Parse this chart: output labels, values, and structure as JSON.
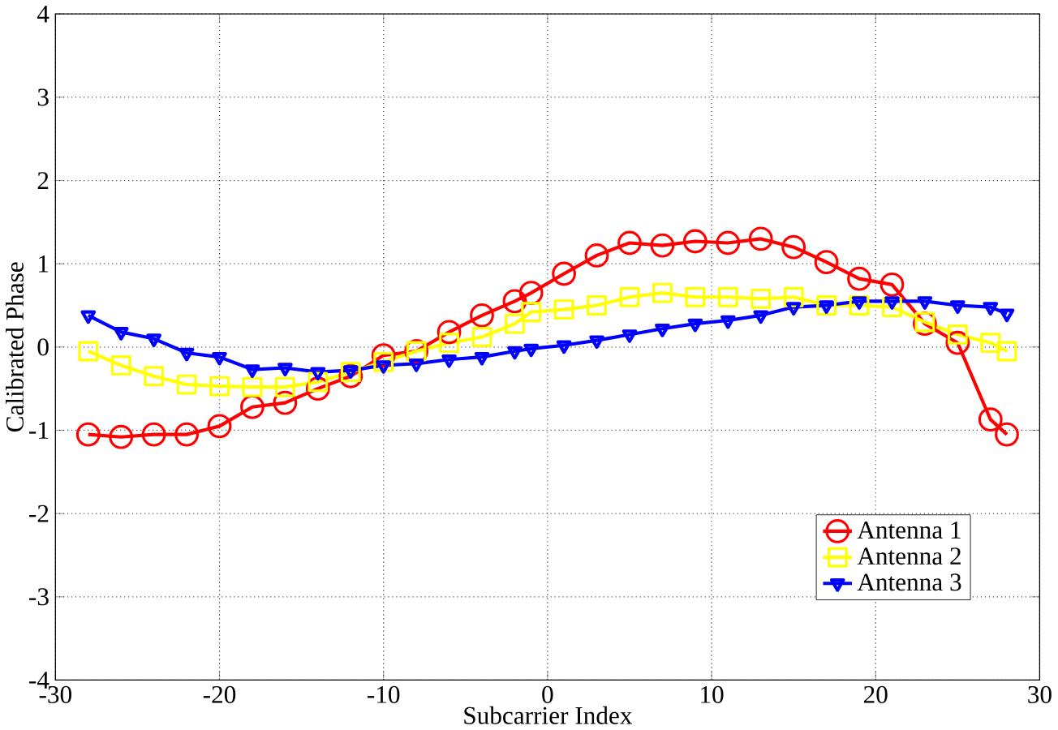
{
  "chart_data": {
    "type": "line",
    "xlabel": "Subcarrier Index",
    "ylabel": "Calibrated Phase",
    "x": [
      -28,
      -26,
      -24,
      -22,
      -20,
      -18,
      -16,
      -14,
      -12,
      -10,
      -8,
      -6,
      -4,
      -2,
      -1,
      1,
      3,
      5,
      7,
      9,
      11,
      13,
      15,
      17,
      19,
      21,
      23,
      25,
      27,
      28
    ],
    "series": [
      {
        "name": "Antenna 1",
        "color": "#ff0000",
        "marker": "circle",
        "values": [
          -1.05,
          -1.08,
          -1.05,
          -1.05,
          -0.95,
          -0.72,
          -0.67,
          -0.5,
          -0.35,
          -0.1,
          -0.05,
          0.18,
          0.38,
          0.55,
          0.65,
          0.88,
          1.1,
          1.25,
          1.22,
          1.27,
          1.25,
          1.3,
          1.2,
          1.02,
          0.82,
          0.75,
          0.28,
          0.05,
          -0.87,
          -1.05
        ]
      },
      {
        "name": "Antenna 2",
        "color": "#ffff00",
        "marker": "square",
        "values": [
          -0.05,
          -0.22,
          -0.35,
          -0.45,
          -0.47,
          -0.48,
          -0.48,
          -0.42,
          -0.3,
          -0.18,
          -0.05,
          0.05,
          0.12,
          0.28,
          0.42,
          0.45,
          0.5,
          0.6,
          0.65,
          0.6,
          0.6,
          0.58,
          0.6,
          0.5,
          0.5,
          0.48,
          0.3,
          0.15,
          0.05,
          -0.05
        ]
      },
      {
        "name": "Antenna 3",
        "color": "#0000ff",
        "marker": "triangle",
        "values": [
          0.38,
          0.18,
          0.1,
          -0.07,
          -0.12,
          -0.27,
          -0.25,
          -0.3,
          -0.28,
          -0.22,
          -0.2,
          -0.15,
          -0.12,
          -0.05,
          -0.02,
          0.02,
          0.08,
          0.15,
          0.22,
          0.28,
          0.32,
          0.38,
          0.48,
          0.5,
          0.55,
          0.55,
          0.55,
          0.5,
          0.48,
          0.4
        ]
      }
    ],
    "xlim": [
      -30,
      30
    ],
    "xticks": [
      -30,
      -20,
      -10,
      0,
      10,
      20,
      30
    ],
    "ylim": [
      -4,
      4
    ],
    "yticks": [
      -4,
      -3,
      -2,
      -1,
      0,
      1,
      2,
      3,
      4
    ],
    "grid": true,
    "legend": "bottom right",
    "line_style": "solid"
  }
}
